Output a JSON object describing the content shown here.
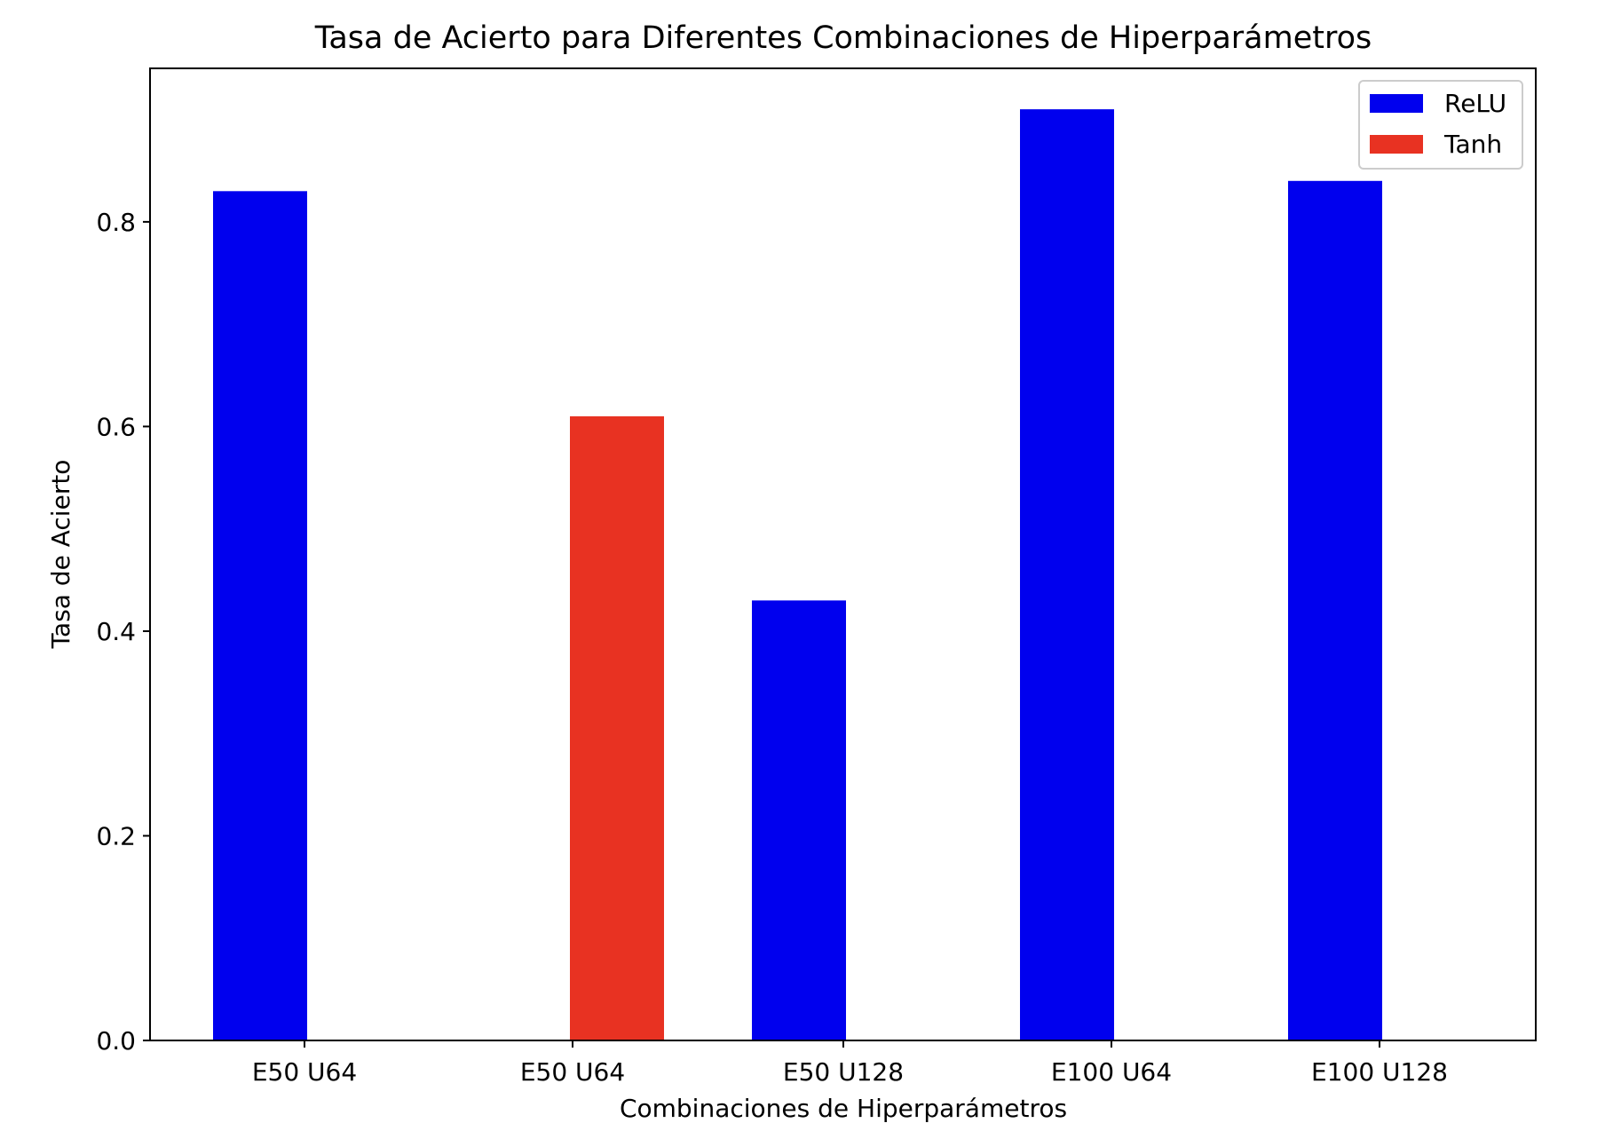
{
  "chart_data": {
    "type": "bar",
    "title": "Tasa de Acierto para Diferentes Combinaciones de Hiperparámetros",
    "xlabel": "Combinaciones de Hiperparámetros",
    "ylabel": "Tasa de Acierto",
    "categories": [
      "E50 U64",
      "E50 U64",
      "E50 U128",
      "E100 U64",
      "E100 U128"
    ],
    "ylim": [
      0,
      0.95
    ],
    "yticks": [
      0.0,
      0.2,
      0.4,
      0.6,
      0.8
    ],
    "ytick_labels": [
      "0.0",
      "0.2",
      "0.4",
      "0.6",
      "0.8"
    ],
    "grid": false,
    "legend_position": "top-right",
    "series": [
      {
        "name": "ReLU",
        "color": "#0000ee",
        "values": [
          0.83,
          null,
          0.43,
          0.91,
          0.84
        ]
      },
      {
        "name": "Tanh",
        "color": "#e83222",
        "values": [
          null,
          0.61,
          null,
          null,
          null
        ]
      }
    ]
  }
}
